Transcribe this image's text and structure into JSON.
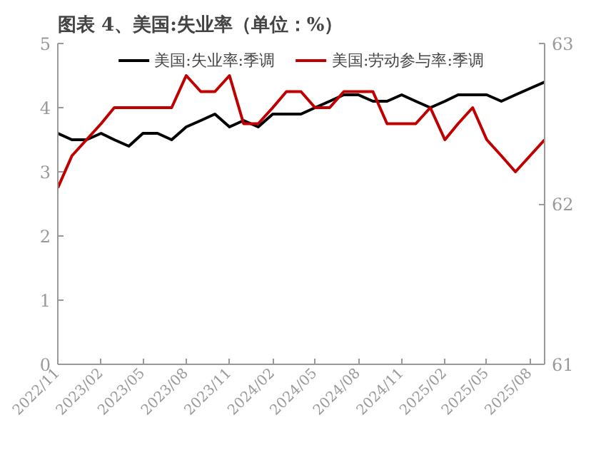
{
  "chart_data": {
    "type": "line",
    "title": "图表 4、美国:失业率（单位：%）",
    "x": [
      "2022-11",
      "2022-12",
      "2023-01",
      "2023-02",
      "2023-03",
      "2023-04",
      "2023-05",
      "2023-06",
      "2023-07",
      "2023-08",
      "2023-09",
      "2023-10",
      "2023-11",
      "2023-12",
      "2024-01",
      "2024-02",
      "2024-03",
      "2024-04",
      "2024-05",
      "2024-06",
      "2024-07",
      "2024-08",
      "2024-09",
      "2024-10",
      "2024-11",
      "2024-12",
      "2025-01",
      "2025-02",
      "2025-03",
      "2025-04",
      "2025-05",
      "2025-06",
      "2025-07",
      "2025-08",
      "2025-09"
    ],
    "series": [
      {
        "name": "美国:失业率:季调",
        "color": "#000000",
        "values": [
          3.6,
          3.5,
          3.5,
          3.6,
          3.5,
          3.4,
          3.6,
          3.6,
          3.5,
          3.7,
          3.8,
          3.9,
          3.7,
          3.8,
          3.7,
          3.9,
          3.9,
          3.9,
          4.0,
          4.1,
          4.2,
          4.2,
          4.1,
          4.1,
          4.2,
          4.1,
          4.0,
          4.1,
          4.2,
          4.2,
          4.2,
          4.1,
          4.2,
          4.3,
          4.4
        ]
      },
      {
        "name": "美国:劳动参与率:季调",
        "color": "#c00000",
        "axis": "y2",
        "values": [
          62.1,
          62.3,
          62.4,
          62.5,
          62.6,
          62.6,
          62.6,
          62.6,
          62.6,
          62.8,
          62.7,
          62.7,
          62.8,
          62.5,
          62.5,
          62.6,
          62.7,
          62.7,
          62.6,
          62.6,
          62.7,
          62.7,
          62.7,
          62.5,
          62.5,
          62.5,
          62.6,
          62.4,
          62.5,
          62.6,
          62.4,
          62.3,
          62.2,
          62.3,
          62.4
        ]
      }
    ],
    "xlim": [
      "2022-11",
      "2025-09"
    ],
    "xticks": [
      {
        "value": "2022-11",
        "label": "2022/11"
      },
      {
        "value": "2023-02",
        "label": "2023/02"
      },
      {
        "value": "2023-05",
        "label": "2023/05"
      },
      {
        "value": "2023-08",
        "label": "2023/08"
      },
      {
        "value": "2023-11",
        "label": "2023/11"
      },
      {
        "value": "2024-02",
        "label": "2024/02"
      },
      {
        "value": "2024-05",
        "label": "2024/05"
      },
      {
        "value": "2024-08",
        "label": "2024/08"
      },
      {
        "value": "2024-11",
        "label": "2024/11"
      },
      {
        "value": "2025-02",
        "label": "2025/02"
      },
      {
        "value": "2025-05",
        "label": "2025/05"
      },
      {
        "value": "2025-08",
        "label": "2025/08"
      }
    ],
    "ylim": [
      0,
      5
    ],
    "yticks": [
      0,
      1,
      2,
      3,
      4,
      5
    ],
    "y2lim": [
      61,
      63
    ],
    "y2ticks": [
      61,
      62,
      63
    ],
    "grid": false,
    "legend": "top",
    "line_style": "solid",
    "marker": "none"
  }
}
